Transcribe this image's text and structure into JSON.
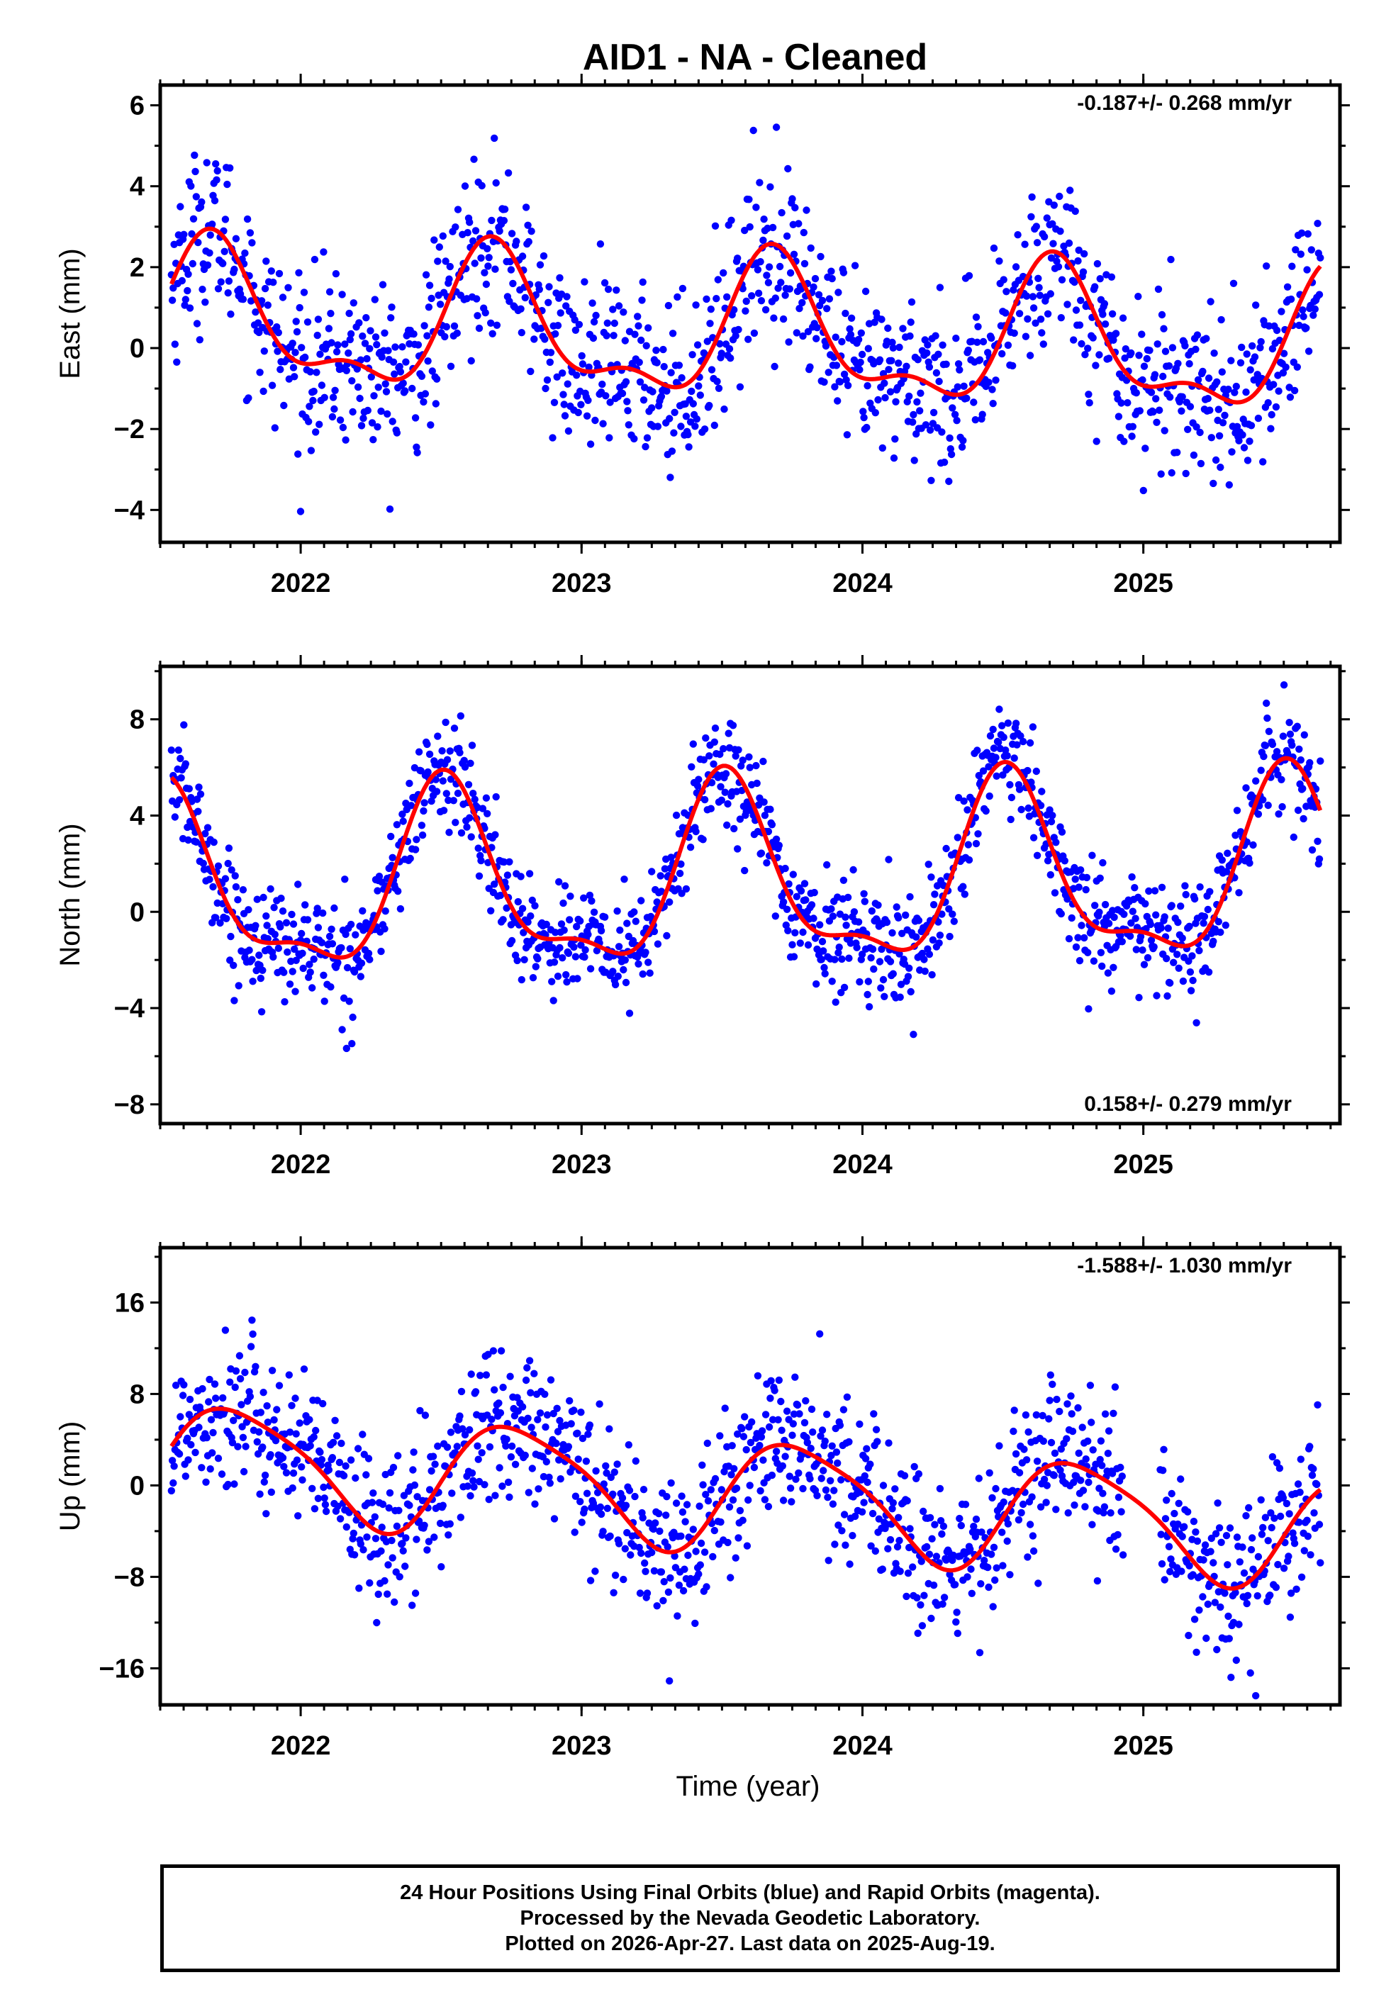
{
  "title": "AID1  - NA - Cleaned",
  "footer": {
    "lines": [
      "24 Hour Positions Using Final Orbits (blue) and Rapid Orbits (magenta).",
      "Processed by the Nevada Geodetic Laboratory.",
      "Plotted on 2026-Apr-27. Last data on 2025-Aug-19."
    ]
  },
  "colors": {
    "points": "#0000ff",
    "fit": "#ff0000",
    "frame": "#000000"
  },
  "chart_data": [
    {
      "type": "scatter",
      "name": "east",
      "title": "AID1  - NA - Cleaned",
      "ylabel": "East (mm)",
      "xlabel": "",
      "xlim": [
        2021.5,
        2025.7
      ],
      "ylim": [
        -4.8,
        6.5
      ],
      "xticks": [
        2022,
        2023,
        2024,
        2025
      ],
      "xtick_labels": [
        "2022",
        "2023",
        "2024",
        "2025"
      ],
      "yticks": [
        -4,
        -2,
        0,
        2,
        4,
        6
      ],
      "ytick_labels": [
        "−4",
        "−2",
        "0",
        "2",
        "4",
        "6"
      ],
      "rate": "-0.187+/- 0.268 mm/yr",
      "rate_position": "top-right",
      "fit_model": {
        "amp1": 1.6,
        "phase1": 2021.69,
        "amp2": 0.7,
        "phase2": 2021.67,
        "trend": -0.187,
        "t0": 2023.6,
        "offset": 0.3
      },
      "scatter_sigma": 1.05,
      "series": [
        {
          "name": "Final Orbits",
          "color": "#0000ff",
          "x_start": 2021.54,
          "x_end": 2025.63,
          "n_points": 1300
        },
        {
          "name": "Fit",
          "color": "#ff0000"
        }
      ]
    },
    {
      "type": "scatter",
      "name": "north",
      "ylabel": "North (mm)",
      "xlabel": "",
      "xlim": [
        2021.5,
        2025.7
      ],
      "ylim": [
        -8.8,
        10.2
      ],
      "xticks": [
        2022,
        2023,
        2024,
        2025
      ],
      "xtick_labels": [
        "2022",
        "2023",
        "2024",
        "2025"
      ],
      "yticks": [
        -8,
        -4,
        0,
        4,
        8
      ],
      "ytick_labels": [
        "−8",
        "−4",
        "0",
        "4",
        "8"
      ],
      "rate": "0.158+/- 0.279 mm/yr",
      "rate_position": "bottom-right",
      "fit_model": {
        "amp1": 3.6,
        "phase1": 2021.52,
        "amp2": 1.3,
        "phase2": 2021.5,
        "trend": 0.158,
        "t0": 2023.6,
        "offset": 1.2
      },
      "scatter_sigma": 1.15,
      "series": [
        {
          "name": "Final Orbits",
          "color": "#0000ff",
          "x_start": 2021.54,
          "x_end": 2025.63,
          "n_points": 1300
        },
        {
          "name": "Fit",
          "color": "#ff0000"
        }
      ]
    },
    {
      "type": "scatter",
      "name": "up",
      "ylabel": "Up (mm)",
      "xlabel": "Time (year)",
      "xlim": [
        2021.5,
        2025.7
      ],
      "ylim": [
        -19.2,
        20.8
      ],
      "xticks": [
        2022,
        2023,
        2024,
        2025
      ],
      "xtick_labels": [
        "2022",
        "2023",
        "2024",
        "2025"
      ],
      "yticks": [
        -16,
        -8,
        0,
        8,
        16
      ],
      "ytick_labels": [
        "−16",
        "−8",
        "0",
        "8",
        "16"
      ],
      "rate": "-1.588+/- 1.030 mm/yr",
      "rate_position": "top-right",
      "fit_model": {
        "amp1": 4.8,
        "phase1": 2021.78,
        "amp2": 0.9,
        "phase2": 2021.6,
        "trend": -1.588,
        "t0": 2023.6,
        "offset": -0.8
      },
      "scatter_sigma": 3.4,
      "series": [
        {
          "name": "Final Orbits",
          "color": "#0000ff",
          "x_start": 2021.54,
          "x_end": 2025.63,
          "n_points": 1300
        },
        {
          "name": "Fit",
          "color": "#ff0000"
        }
      ]
    }
  ]
}
